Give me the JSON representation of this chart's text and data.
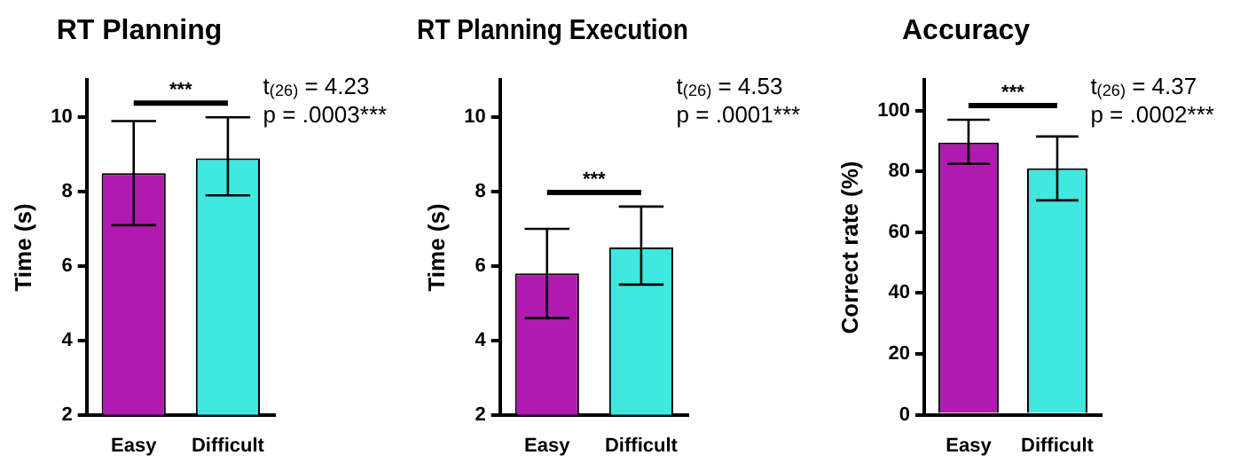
{
  "chart_data": [
    {
      "type": "bar",
      "title": "RT Planning",
      "ylabel": "Time (s)",
      "categories": [
        "Easy",
        "Difficult"
      ],
      "values": [
        8.5,
        8.9
      ],
      "colors": [
        "#b01ab0",
        "#3fe8e0"
      ],
      "errors": [
        [
          7.1,
          9.9
        ],
        [
          7.9,
          10.0
        ]
      ],
      "ylim": [
        2,
        11
      ],
      "yticks": [
        2,
        4,
        6,
        8,
        10
      ],
      "annotations": [
        "***",
        "t$_{(26)}$ = 4.23",
        "p = .0003***"
      ]
    },
    {
      "type": "bar",
      "title": "RT Planning Execution",
      "ylabel": "Time (s)",
      "categories": [
        "Easy",
        "Difficult"
      ],
      "values": [
        5.8,
        6.5
      ],
      "colors": [
        "#b01ab0",
        "#3fe8e0"
      ],
      "errors": [
        [
          4.6,
          7.0
        ],
        [
          5.5,
          7.6
        ]
      ],
      "ylim": [
        2,
        11
      ],
      "yticks": [
        2,
        4,
        6,
        8,
        10
      ],
      "annotations": [
        "***",
        "t$_{(26)}$ = 4.53",
        "p = .0001***"
      ]
    },
    {
      "type": "bar",
      "title": "Accuracy",
      "ylabel": "Correct rate (%)",
      "categories": [
        "Easy",
        "Difficult"
      ],
      "values": [
        89.5,
        81
      ],
      "colors": [
        "#b01ab0",
        "#3fe8e0"
      ],
      "errors": [
        [
          82.5,
          97
        ],
        [
          70.5,
          91.5
        ]
      ],
      "ylim": [
        0,
        110
      ],
      "yticks": [
        0,
        20,
        40,
        60,
        80,
        100
      ],
      "annotations": [
        "***",
        "t$_{(26)}$ = 4.37",
        "p = .0002***"
      ]
    }
  ]
}
